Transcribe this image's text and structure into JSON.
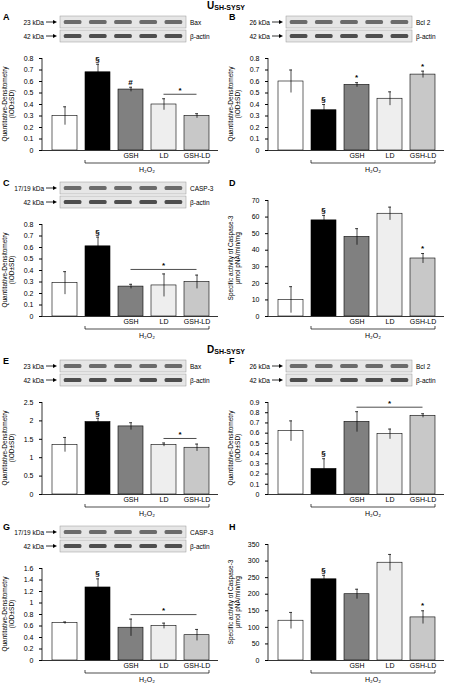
{
  "sections": [
    {
      "title": "U",
      "subscript": "SH-SYSY"
    },
    {
      "title": "D",
      "subscript": "SH-SYSY"
    }
  ],
  "chart_data": [
    {
      "type": "bar",
      "panel": "A",
      "blot": [
        {
          "size": "23 kDa",
          "protein": "Bax"
        },
        {
          "size": "42 kDa",
          "protein": "β-actin"
        }
      ],
      "ylabel": [
        "Quantitative-Densitometry",
        "(IOD±SD)"
      ],
      "categories": [
        null,
        null,
        "GSH",
        "LD",
        "GSH-LD"
      ],
      "group": {
        "label": "H₂O₂",
        "from": 1,
        "to": 4
      },
      "values": [
        0.3,
        0.68,
        0.53,
        0.4,
        0.3
      ],
      "errors": [
        0.08,
        0.07,
        0.02,
        0.05,
        0.02
      ],
      "colors": [
        "#ffffff",
        "#000000",
        "#808080",
        "#eeeeee",
        "#c8c8c8"
      ],
      "ylim": [
        0,
        0.8
      ],
      "yticks": [
        0,
        0.1,
        0.2,
        0.3,
        0.4,
        0.5,
        0.6,
        0.7,
        0.8
      ],
      "annotations": [
        {
          "text": "§",
          "at": 1
        },
        {
          "text": "#",
          "at": 2
        },
        {
          "text": "*",
          "from": 3,
          "to": 4
        }
      ]
    },
    {
      "type": "bar",
      "panel": "B",
      "blot": [
        {
          "size": "26 kDa",
          "protein": "Bcl 2"
        },
        {
          "size": "42 kDa",
          "protein": "β-actin"
        }
      ],
      "ylabel": [
        "Quantitative-Densitometry",
        "(IOD±SD)"
      ],
      "categories": [
        null,
        null,
        "GSH",
        "LD",
        "GSH-LD"
      ],
      "group": {
        "label": "H₂O₂",
        "from": 1,
        "to": 4
      },
      "values": [
        0.6,
        0.35,
        0.57,
        0.45,
        0.66
      ],
      "errors": [
        0.1,
        0.05,
        0.02,
        0.06,
        0.03
      ],
      "colors": [
        "#ffffff",
        "#000000",
        "#808080",
        "#eeeeee",
        "#c8c8c8"
      ],
      "ylim": [
        0,
        0.8
      ],
      "yticks": [
        0,
        0.1,
        0.2,
        0.3,
        0.4,
        0.5,
        0.6,
        0.7,
        0.8
      ],
      "annotations": [
        {
          "text": "§",
          "at": 1
        },
        {
          "text": "*",
          "at": 2
        },
        {
          "text": "*",
          "at": 4
        }
      ]
    },
    {
      "type": "bar",
      "panel": "C",
      "blot": [
        {
          "size": "17/19 kDa",
          "protein": "CASP-3"
        },
        {
          "size": "42 kDa",
          "protein": "β-actin"
        }
      ],
      "ylabel": [
        "Quantitative-Densitometry",
        "(IOD±SD)"
      ],
      "categories": [
        null,
        null,
        "GSH",
        "LD",
        "GSH-LD"
      ],
      "group": {
        "label": "H₂O₂",
        "from": 1,
        "to": 4
      },
      "values": [
        0.29,
        0.61,
        0.26,
        0.27,
        0.3
      ],
      "errors": [
        0.1,
        0.08,
        0.02,
        0.1,
        0.06
      ],
      "colors": [
        "#ffffff",
        "#000000",
        "#808080",
        "#eeeeee",
        "#c8c8c8"
      ],
      "ylim": [
        0,
        0.8
      ],
      "yticks": [
        0,
        0.1,
        0.2,
        0.3,
        0.4,
        0.5,
        0.6,
        0.7,
        0.8
      ],
      "annotations": [
        {
          "text": "§",
          "at": 1
        },
        {
          "text": "*",
          "from": 2,
          "to": 4
        }
      ]
    },
    {
      "type": "bar",
      "panel": "D",
      "ylabel": [
        "Specific activity of Caspase-3",
        "µmol pNA/min/mg"
      ],
      "categories": [
        null,
        null,
        "GSH",
        "LD",
        "GSH-LD"
      ],
      "group": {
        "label": "H₂O₂",
        "from": 1,
        "to": 4
      },
      "values": [
        10,
        58,
        48,
        62,
        35
      ],
      "errors": [
        8,
        3,
        5,
        4,
        3
      ],
      "colors": [
        "#ffffff",
        "#000000",
        "#808080",
        "#eeeeee",
        "#c8c8c8"
      ],
      "ylim": [
        0,
        70
      ],
      "yticks": [
        0,
        10,
        20,
        30,
        40,
        50,
        60,
        70
      ],
      "annotations": [
        {
          "text": "§",
          "at": 1
        },
        {
          "text": "*",
          "at": 4
        }
      ]
    },
    {
      "type": "bar",
      "panel": "E",
      "blot": [
        {
          "size": "23 kDa",
          "protein": "Bax"
        },
        {
          "size": "42 kDa",
          "protein": "β-actin"
        }
      ],
      "ylabel": [
        "Quantitative-Densitometry",
        "(IOD±SD)"
      ],
      "categories": [
        null,
        null,
        "GSH",
        "LD",
        "GSH-LD"
      ],
      "group": {
        "label": "H₂O₂",
        "from": 1,
        "to": 4
      },
      "values": [
        1.35,
        1.97,
        1.85,
        1.35,
        1.27
      ],
      "errors": [
        0.2,
        0.1,
        0.1,
        0.05,
        0.1
      ],
      "colors": [
        "#ffffff",
        "#000000",
        "#808080",
        "#eeeeee",
        "#c8c8c8"
      ],
      "ylim": [
        0,
        2.5
      ],
      "yticks": [
        0,
        0.5,
        1,
        1.5,
        2,
        2.5
      ],
      "annotations": [
        {
          "text": "§",
          "at": 1
        },
        {
          "text": "*",
          "from": 3,
          "to": 4
        }
      ]
    },
    {
      "type": "bar",
      "panel": "F",
      "blot": [
        {
          "size": "26 kDa",
          "protein": "Bcl 2"
        },
        {
          "size": "42 kDa",
          "protein": "β-actin"
        }
      ],
      "ylabel": [
        "Quantitative-Densitometry",
        "(IOD±SD)"
      ],
      "categories": [
        null,
        null,
        "GSH",
        "LD",
        "GSH-LD"
      ],
      "group": {
        "label": "H₂O₂",
        "from": 1,
        "to": 4
      },
      "values": [
        0.62,
        0.25,
        0.71,
        0.59,
        0.77
      ],
      "errors": [
        0.1,
        0.1,
        0.1,
        0.05,
        0.02
      ],
      "colors": [
        "#ffffff",
        "#000000",
        "#808080",
        "#eeeeee",
        "#c8c8c8"
      ],
      "ylim": [
        0,
        0.9
      ],
      "yticks": [
        0,
        0.1,
        0.2,
        0.3,
        0.4,
        0.5,
        0.6,
        0.7,
        0.8,
        0.9
      ],
      "annotations": [
        {
          "text": "§",
          "at": 1
        },
        {
          "text": "*",
          "from": 2,
          "to": 4
        }
      ]
    },
    {
      "type": "bar",
      "panel": "G",
      "blot": [
        {
          "size": "17/19 kDa",
          "protein": "CASP-3"
        },
        {
          "size": "42 kDa",
          "protein": "β-actin"
        }
      ],
      "ylabel": [
        "Quantitative-Densitometry",
        "(IOD±SD)"
      ],
      "categories": [
        null,
        null,
        "GSH",
        "LD",
        "GSH-LD"
      ],
      "group": {
        "label": "H₂O₂",
        "from": 1,
        "to": 4
      },
      "values": [
        0.65,
        1.27,
        0.57,
        0.6,
        0.44
      ],
      "errors": [
        0.02,
        0.15,
        0.15,
        0.05,
        0.1
      ],
      "colors": [
        "#ffffff",
        "#000000",
        "#808080",
        "#eeeeee",
        "#c8c8c8"
      ],
      "ylim": [
        0,
        1.6
      ],
      "yticks": [
        0,
        0.2,
        0.4,
        0.6,
        0.8,
        1,
        1.2,
        1.4,
        1.6
      ],
      "annotations": [
        {
          "text": "§",
          "at": 1
        },
        {
          "text": "*",
          "from": 2,
          "to": 4
        }
      ]
    },
    {
      "type": "bar",
      "panel": "H",
      "ylabel": [
        "Specific activity of Caspase-3",
        "µmol pNA/min/mg"
      ],
      "categories": [
        null,
        null,
        "GSH",
        "LD",
        "GSH-LD"
      ],
      "group": {
        "label": "H₂O₂",
        "from": 1,
        "to": 4
      },
      "values": [
        120,
        245,
        200,
        295,
        130
      ],
      "errors": [
        25,
        12,
        15,
        25,
        20
      ],
      "colors": [
        "#ffffff",
        "#000000",
        "#808080",
        "#eeeeee",
        "#c8c8c8"
      ],
      "ylim": [
        0,
        350
      ],
      "yticks": [
        0,
        50,
        100,
        150,
        200,
        250,
        300,
        350
      ],
      "annotations": [
        {
          "text": "§",
          "at": 1
        },
        {
          "text": "*",
          "at": 4
        }
      ]
    }
  ]
}
